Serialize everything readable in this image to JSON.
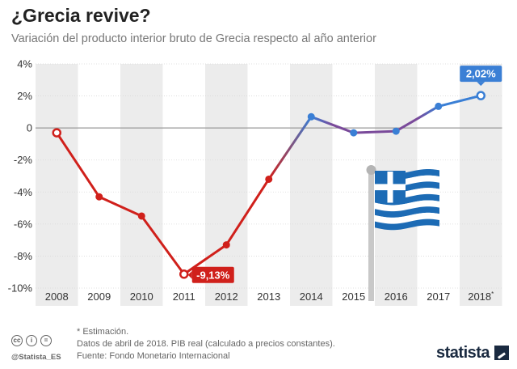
{
  "header": {
    "title": "¿Grecia revive?",
    "subtitle": "Variación del producto interior bruto de Grecia respecto al año anterior"
  },
  "chart_data": {
    "type": "line",
    "title": "¿Grecia revive?",
    "subtitle": "Variación del producto interior bruto de Grecia respecto al año anterior",
    "xlabel": "",
    "ylabel": "",
    "categories": [
      "2008",
      "2009",
      "2010",
      "2011",
      "2012",
      "2013",
      "2014",
      "2015",
      "2016",
      "2017",
      "2018*"
    ],
    "series": [
      {
        "values": [
          -0.3,
          -4.3,
          -5.5,
          -9.13,
          -7.3,
          -3.2,
          0.7,
          -0.3,
          -0.2,
          1.35,
          2.02
        ],
        "colors": [
          "#d0201b",
          "#d0201b",
          "#d0201b",
          "#d0201b",
          "#d0201b",
          "#d0201b",
          "#3a7fd5",
          "#3a7fd5",
          "#3a7fd5",
          "#3a7fd5",
          "#3a7fd5"
        ]
      }
    ],
    "ylim": [
      -10,
      4
    ],
    "yticks": [
      4,
      2,
      0,
      -2,
      -4,
      -6,
      -8,
      -10
    ],
    "ytick_labels": [
      "4%",
      "2%",
      "0",
      "-2%",
      "-4%",
      "-6%",
      "-8%",
      "-10%"
    ],
    "grid": "alternating-bands",
    "annotations": [
      {
        "index": 3,
        "text": "-9,13%",
        "color": "#d0201b"
      },
      {
        "index": 10,
        "text": "2,02%",
        "color": "#3a7fd5"
      }
    ],
    "colors": {
      "negative": "#d0201b",
      "positive": "#3a7fd5",
      "band": "#ececec"
    }
  },
  "footer": {
    "notes": [
      "* Estimación.",
      "Datos de abril de 2018. PIB real (calculado a precios constantes).",
      "Fuente: Fondo Monetario Internacional"
    ],
    "handle": "@Statista_ES",
    "brand": "statista",
    "license_icons": [
      "cc",
      "i",
      "="
    ]
  }
}
